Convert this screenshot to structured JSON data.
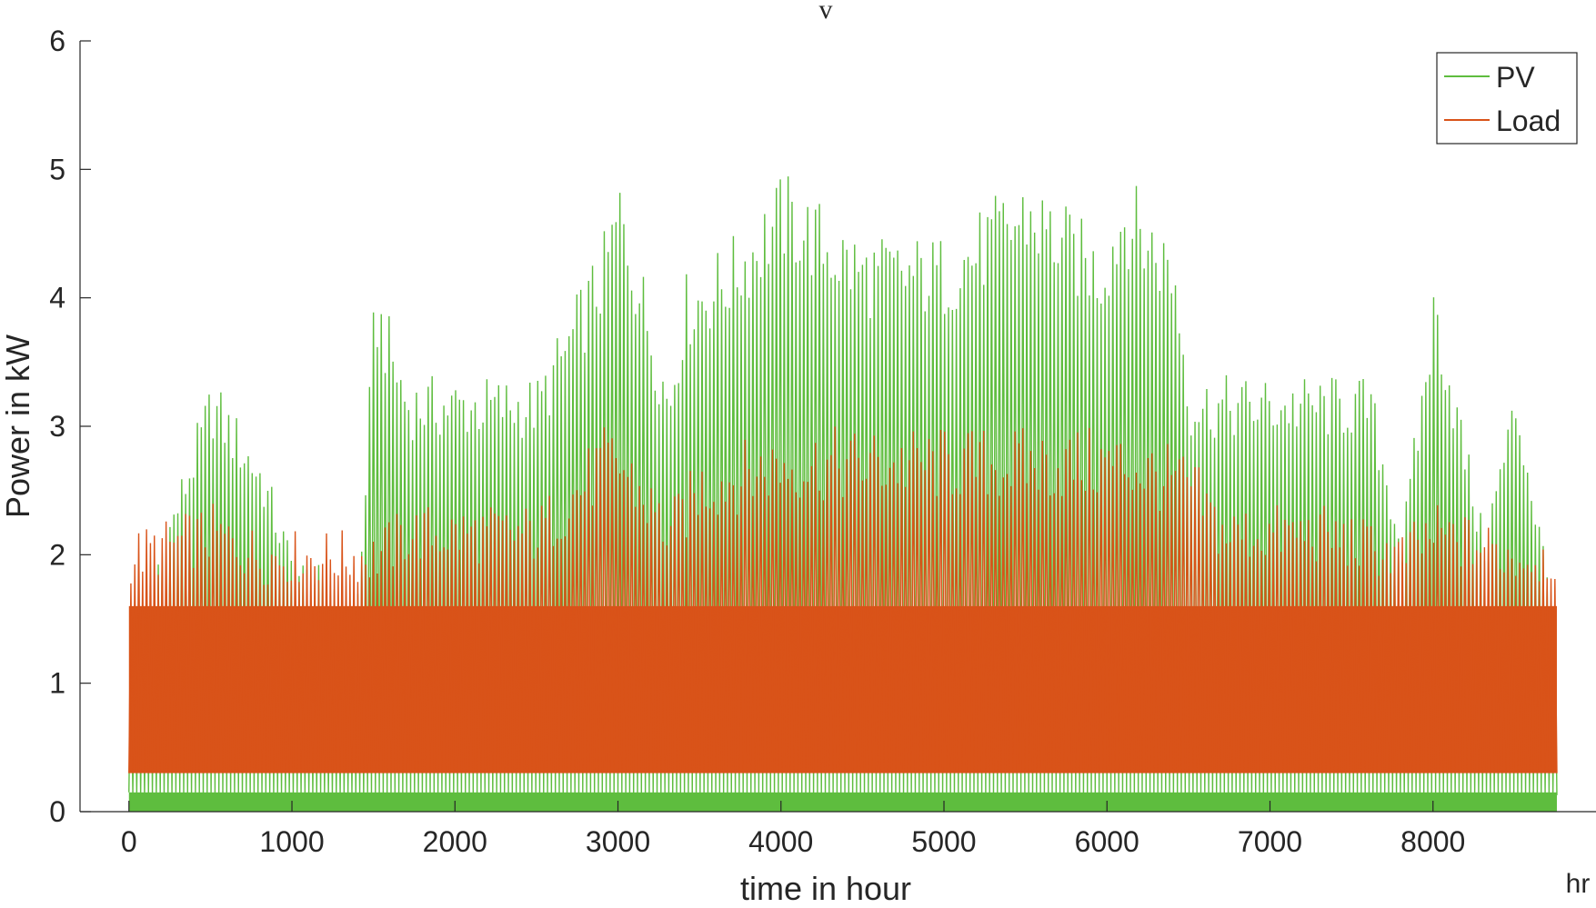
{
  "chart_data": {
    "type": "line",
    "title": "v",
    "xlabel": "time in hour",
    "ylabel": "Power in kW",
    "x_unit_label": "hr",
    "xlim": [
      -300,
      9000
    ],
    "ylim": [
      0,
      6
    ],
    "xticks": [
      0,
      1000,
      2000,
      3000,
      4000,
      5000,
      6000,
      7000,
      8000
    ],
    "yticks": [
      0,
      1,
      2,
      3,
      4,
      5,
      6
    ],
    "grid": false,
    "legend_position": "top-right",
    "x_range": [
      0,
      8760
    ],
    "series": [
      {
        "name": "PV",
        "color": "#5ebd3e",
        "daily_peak_profile": {
          "x": [
            0,
            500,
            800,
            1000,
            1400,
            1500,
            1700,
            2000,
            2500,
            2900,
            3000,
            3300,
            3400,
            3700,
            4000,
            4500,
            5000,
            5500,
            5950,
            6100,
            6400,
            6500,
            6600,
            7000,
            7300,
            7600,
            7800,
            8000,
            8300,
            8500,
            8760
          ],
          "y": [
            1.4,
            3.4,
            2.8,
            2.0,
            1.8,
            4.2,
            3.4,
            3.4,
            3.4,
            4.5,
            5.0,
            3.4,
            4.2,
            4.5,
            5.0,
            4.5,
            4.5,
            5.0,
            4.5,
            5.0,
            4.5,
            3.4,
            3.4,
            3.4,
            3.4,
            3.4,
            2.2,
            4.2,
            2.2,
            3.4,
            1.4
          ]
        },
        "baseline": 0.15
      },
      {
        "name": "Load",
        "color": "#d95319",
        "daily_peak_profile": {
          "x": [
            0,
            500,
            800,
            1000,
            1500,
            1700,
            2000,
            2500,
            2900,
            3000,
            3300,
            3500,
            4000,
            5000,
            5950,
            6100,
            6500,
            6700,
            7000,
            7300,
            7800,
            8000,
            8500,
            8760
          ],
          "y": [
            2.2,
            2.4,
            2.2,
            2.2,
            2.2,
            2.4,
            2.4,
            2.4,
            3.0,
            3.0,
            2.4,
            2.8,
            3.0,
            3.0,
            3.0,
            3.0,
            2.8,
            2.4,
            2.4,
            2.4,
            2.2,
            2.4,
            2.2,
            2.2
          ]
        },
        "body_top": 1.6,
        "baseline": 0.3
      }
    ]
  }
}
